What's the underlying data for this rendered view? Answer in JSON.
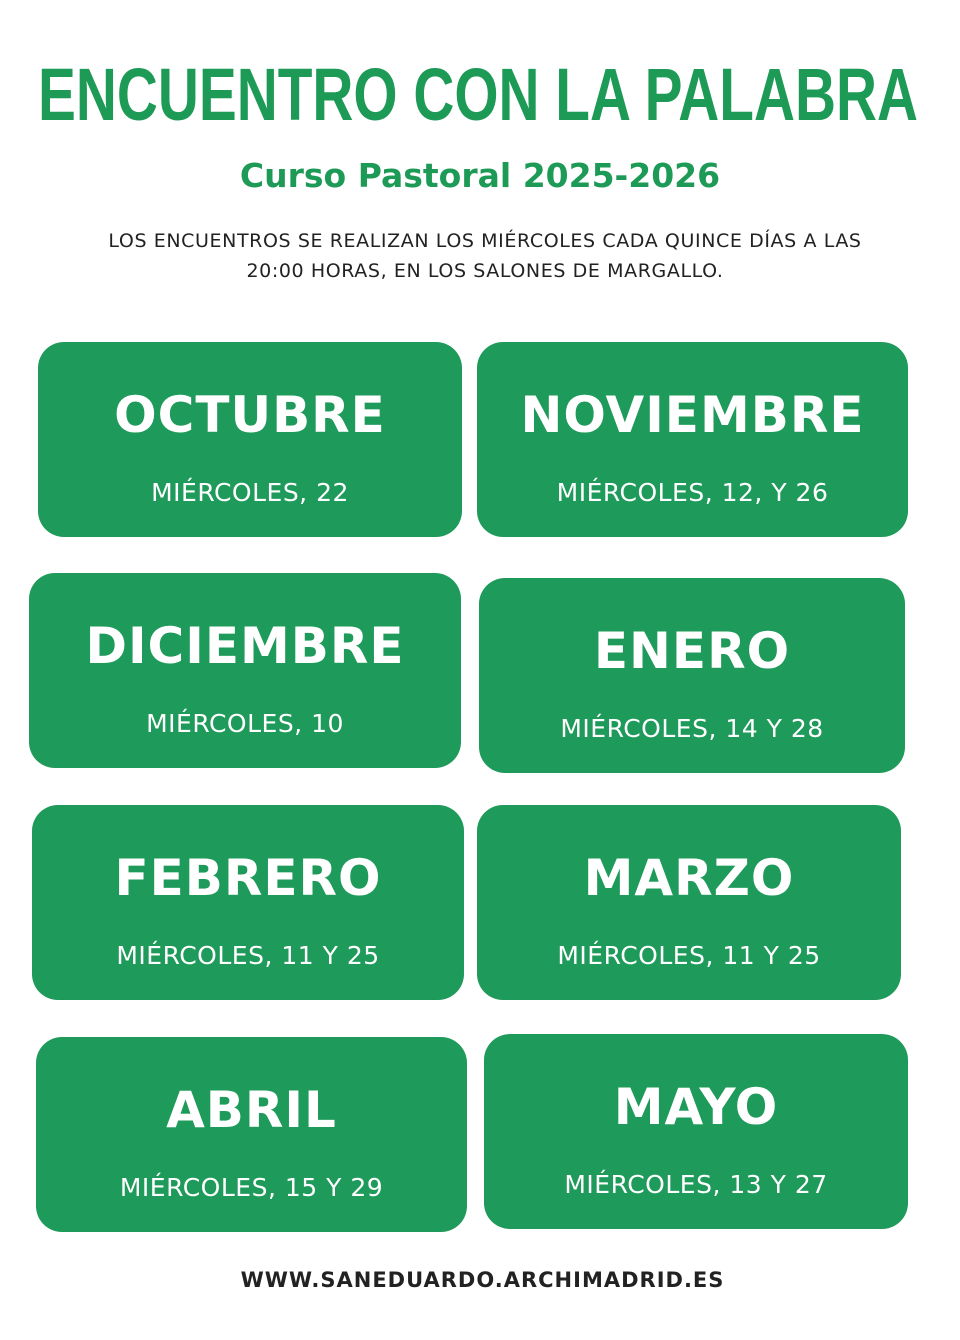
{
  "header": {
    "title": "ENCUENTRO CON LA PALABRA",
    "subtitle": "Curso Pastoral 2025-2026",
    "description": [
      "LOS ENCUENTROS SE REALIZAN LOS MIÉRCOLES CADA QUINCE DÍAS A LAS",
      "20:00 HORAS, EN LOS SALONES DE MARGALLO."
    ]
  },
  "months": [
    {
      "name": "OCTUBRE",
      "dates": "MIÉRCOLES, 22"
    },
    {
      "name": "NOVIEMBRE",
      "dates": "MIÉRCOLES, 12, Y 26"
    },
    {
      "name": "DICIEMBRE",
      "dates": "MIÉRCOLES, 10"
    },
    {
      "name": "ENERO",
      "dates": "MIÉRCOLES, 14 Y 28"
    },
    {
      "name": "FEBRERO",
      "dates": "MIÉRCOLES, 11 Y 25"
    },
    {
      "name": "MARZO",
      "dates": "MIÉRCOLES, 11 Y 25"
    },
    {
      "name": "ABRIL",
      "dates": "MIÉRCOLES, 15 Y 29"
    },
    {
      "name": "MAYO",
      "dates": "MIÉRCOLES, 13 Y 27"
    }
  ],
  "footer": {
    "url": "WWW.SANEDUARDO.ARCHIMADRID.ES"
  }
}
